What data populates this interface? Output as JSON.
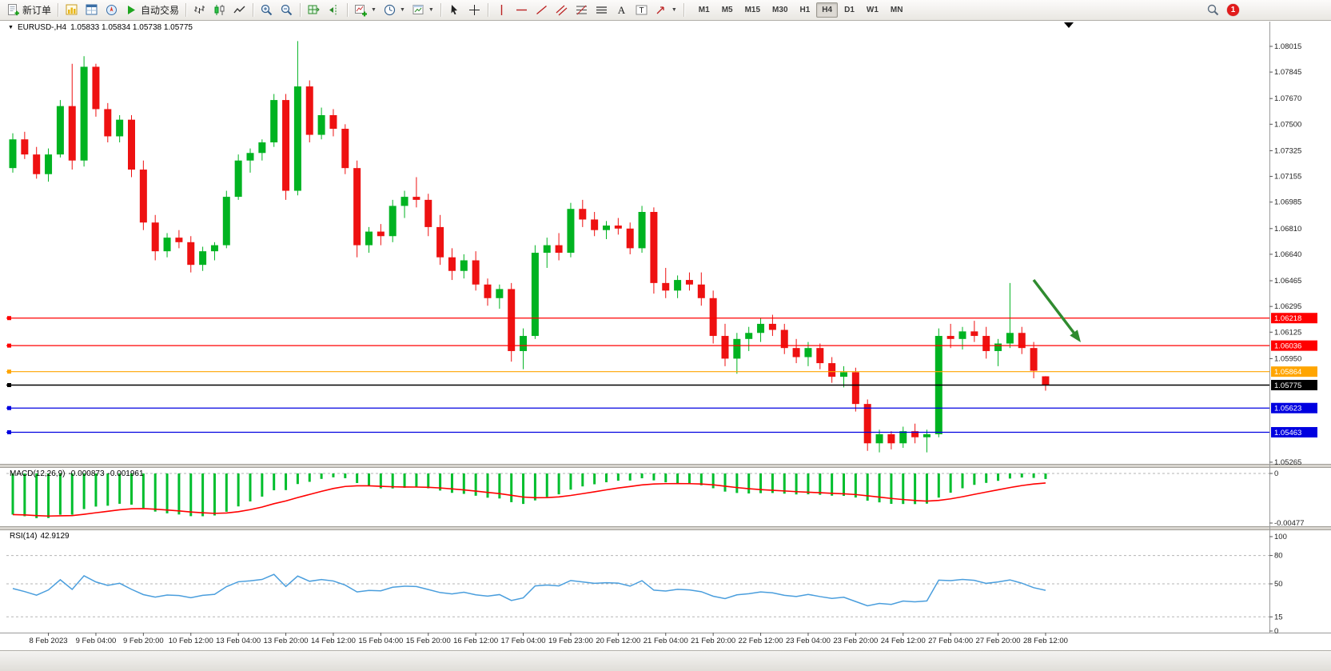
{
  "toolbar": {
    "new_order": "新订单",
    "auto_trading": "自动交易",
    "timeframes": [
      "M1",
      "M5",
      "M15",
      "M30",
      "H1",
      "H4",
      "D1",
      "W1",
      "MN"
    ],
    "active_timeframe": "H4",
    "notification_count": "1"
  },
  "chart_header": {
    "symbol_period": "EURUSD-,H4",
    "quote_ohlc": "1.05833 1.05834 1.05738 1.05775"
  },
  "chart_data": {
    "type": "candlestick",
    "symbol": "EURUSD-",
    "timeframe": "H4",
    "colors": {
      "up": "#00B321",
      "down": "#EE1111",
      "background": "#FFFFFF",
      "axis_text": "#222222"
    },
    "price_axis_ticks": [
      "1.08015",
      "1.07845",
      "1.07670",
      "1.07500",
      "1.07325",
      "1.07155",
      "1.06985",
      "1.06810",
      "1.06640",
      "1.06465",
      "1.06295",
      "1.06125",
      "1.05950",
      "1.05265"
    ],
    "levels": [
      {
        "label": "1.06218",
        "color": "#FF0000"
      },
      {
        "label": "1.06036",
        "color": "#FF0000"
      },
      {
        "label": "1.05864",
        "color": "#FFA500"
      },
      {
        "label": "1.05775",
        "color": "#000000"
      },
      {
        "label": "1.05623",
        "color": "#0000E0"
      },
      {
        "label": "1.05463",
        "color": "#0000E0"
      }
    ],
    "date_labels": [
      "8 Feb 2023",
      "9 Feb 04:00",
      "9 Feb 20:00",
      "10 Feb 12:00",
      "13 Feb 04:00",
      "13 Feb 20:00",
      "14 Feb 12:00",
      "15 Feb 04:00",
      "15 Feb 20:00",
      "16 Feb 12:00",
      "17 Feb 04:00",
      "19 Feb 23:00",
      "20 Feb 12:00",
      "21 Feb 04:00",
      "21 Feb 20:00",
      "22 Feb 12:00",
      "23 Feb 04:00",
      "23 Feb 20:00",
      "24 Feb 12:00",
      "27 Feb 04:00",
      "27 Feb 20:00",
      "28 Feb 12:00"
    ],
    "ohlc": [
      [
        1.0721,
        1.0744,
        1.0718,
        1.074
      ],
      [
        1.074,
        1.0745,
        1.0727,
        1.073
      ],
      [
        1.073,
        1.0735,
        1.0714,
        1.0717
      ],
      [
        1.0717,
        1.0734,
        1.0712,
        1.073
      ],
      [
        1.073,
        1.0766,
        1.0728,
        1.0762
      ],
      [
        1.0762,
        1.079,
        1.072,
        1.0726
      ],
      [
        1.0726,
        1.0795,
        1.0722,
        1.0788
      ],
      [
        1.0788,
        1.079,
        1.0755,
        1.076
      ],
      [
        1.076,
        1.0764,
        1.0738,
        1.0742
      ],
      [
        1.0742,
        1.0756,
        1.0738,
        1.0753
      ],
      [
        1.0753,
        1.0756,
        1.0715,
        1.072
      ],
      [
        1.072,
        1.0726,
        1.068,
        1.0685
      ],
      [
        1.0685,
        1.069,
        1.066,
        1.0666
      ],
      [
        1.0666,
        1.0678,
        1.0662,
        1.0675
      ],
      [
        1.0675,
        1.068,
        1.0668,
        1.0672
      ],
      [
        1.0672,
        1.0676,
        1.0652,
        1.0657
      ],
      [
        1.0657,
        1.0669,
        1.0653,
        1.0666
      ],
      [
        1.0666,
        1.0672,
        1.066,
        1.067
      ],
      [
        1.067,
        1.0706,
        1.0668,
        1.0702
      ],
      [
        1.0702,
        1.073,
        1.07,
        1.0726
      ],
      [
        1.0726,
        1.0734,
        1.0718,
        1.0731
      ],
      [
        1.0731,
        1.074,
        1.0726,
        1.0738
      ],
      [
        1.0738,
        1.077,
        1.0735,
        1.0766
      ],
      [
        1.0766,
        1.077,
        1.07,
        1.0706
      ],
      [
        1.0706,
        1.0805,
        1.0703,
        1.0775
      ],
      [
        1.0775,
        1.0779,
        1.0738,
        1.0743
      ],
      [
        1.0743,
        1.0761,
        1.074,
        1.0756
      ],
      [
        1.0756,
        1.076,
        1.0742,
        1.0747
      ],
      [
        1.0747,
        1.075,
        1.0717,
        1.0721
      ],
      [
        1.0721,
        1.0726,
        1.0662,
        1.067
      ],
      [
        1.067,
        1.0682,
        1.0665,
        1.0679
      ],
      [
        1.0679,
        1.0684,
        1.067,
        1.0676
      ],
      [
        1.0676,
        1.07,
        1.0672,
        1.0696
      ],
      [
        1.0696,
        1.0706,
        1.0688,
        1.0702
      ],
      [
        1.0702,
        1.0715,
        1.0695,
        1.07
      ],
      [
        1.07,
        1.0704,
        1.0676,
        1.0682
      ],
      [
        1.0682,
        1.069,
        1.0657,
        1.0662
      ],
      [
        1.0662,
        1.0668,
        1.0647,
        1.0653
      ],
      [
        1.0653,
        1.0664,
        1.0648,
        1.066
      ],
      [
        1.066,
        1.0666,
        1.064,
        1.0644
      ],
      [
        1.0644,
        1.0648,
        1.063,
        1.0635
      ],
      [
        1.0635,
        1.0644,
        1.0628,
        1.0641
      ],
      [
        1.0641,
        1.0645,
        1.0593,
        1.06
      ],
      [
        1.06,
        1.0615,
        1.0588,
        1.061
      ],
      [
        1.061,
        1.067,
        1.0608,
        1.0665
      ],
      [
        1.0665,
        1.0675,
        1.0655,
        1.067
      ],
      [
        1.067,
        1.0678,
        1.066,
        1.0665
      ],
      [
        1.0665,
        1.0698,
        1.0662,
        1.0694
      ],
      [
        1.0694,
        1.07,
        1.0682,
        1.0687
      ],
      [
        1.0687,
        1.0692,
        1.0676,
        1.068
      ],
      [
        1.068,
        1.0686,
        1.0674,
        1.0683
      ],
      [
        1.0683,
        1.0688,
        1.0677,
        1.0681
      ],
      [
        1.0681,
        1.0685,
        1.0664,
        1.0668
      ],
      [
        1.0668,
        1.0696,
        1.0665,
        1.0692
      ],
      [
        1.0692,
        1.0695,
        1.0638,
        1.0645
      ],
      [
        1.0645,
        1.0655,
        1.0635,
        1.064
      ],
      [
        1.064,
        1.065,
        1.0635,
        1.0647
      ],
      [
        1.0647,
        1.0652,
        1.064,
        1.0644
      ],
      [
        1.0644,
        1.0652,
        1.063,
        1.0635
      ],
      [
        1.0635,
        1.064,
        1.0605,
        1.061
      ],
      [
        1.061,
        1.0618,
        1.059,
        1.0595
      ],
      [
        1.0595,
        1.0612,
        1.0585,
        1.0608
      ],
      [
        1.0608,
        1.0616,
        1.06,
        1.0612
      ],
      [
        1.0612,
        1.0622,
        1.0606,
        1.0618
      ],
      [
        1.0618,
        1.0624,
        1.061,
        1.0614
      ],
      [
        1.0614,
        1.0618,
        1.0598,
        1.0602
      ],
      [
        1.0602,
        1.0608,
        1.0592,
        1.0596
      ],
      [
        1.0596,
        1.0606,
        1.059,
        1.0602
      ],
      [
        1.0602,
        1.0605,
        1.0588,
        1.0592
      ],
      [
        1.0592,
        1.0596,
        1.0579,
        1.0583
      ],
      [
        1.0583,
        1.059,
        1.0576,
        1.0586
      ],
      [
        1.0586,
        1.0589,
        1.056,
        1.0565
      ],
      [
        1.0565,
        1.0568,
        1.0534,
        1.0539
      ],
      [
        1.0539,
        1.0548,
        1.0533,
        1.0545
      ],
      [
        1.0545,
        1.0547,
        1.0535,
        1.0539
      ],
      [
        1.0539,
        1.055,
        1.0536,
        1.0547
      ],
      [
        1.0547,
        1.0552,
        1.0539,
        1.0543
      ],
      [
        1.0543,
        1.0548,
        1.0533,
        1.0545
      ],
      [
        1.0545,
        1.0615,
        1.0543,
        1.061
      ],
      [
        1.061,
        1.0618,
        1.0602,
        1.0608
      ],
      [
        1.0608,
        1.0616,
        1.0601,
        1.0613
      ],
      [
        1.0613,
        1.062,
        1.0606,
        1.061
      ],
      [
        1.061,
        1.0616,
        1.0595,
        1.06
      ],
      [
        1.06,
        1.0608,
        1.059,
        1.0605
      ],
      [
        1.0605,
        1.0645,
        1.0602,
        1.0612
      ],
      [
        1.0612,
        1.0616,
        1.0598,
        1.0602
      ],
      [
        1.0602,
        1.0606,
        1.0582,
        1.0587
      ],
      [
        1.05833,
        1.05834,
        1.05738,
        1.05775
      ]
    ],
    "indicators": {
      "macd": {
        "name": "MACD(12,26,9)",
        "main_value": "-0.000873",
        "signal_value": "-0.001961",
        "axis_max": "0",
        "axis_min": "-0.00477",
        "histogram_color": "#00BE2D",
        "signal_color": "#FF0000"
      },
      "rsi": {
        "name": "RSI(14)",
        "value": "42.9129",
        "line_color": "#4A9EDD",
        "axis_labels": [
          "100",
          "80",
          "50",
          "15",
          "0"
        ],
        "level_lines": [
          80,
          50,
          15
        ]
      }
    },
    "annotation_arrow": {
      "description": "green arrow pointing down-right",
      "color": "#2F8B2F"
    }
  }
}
